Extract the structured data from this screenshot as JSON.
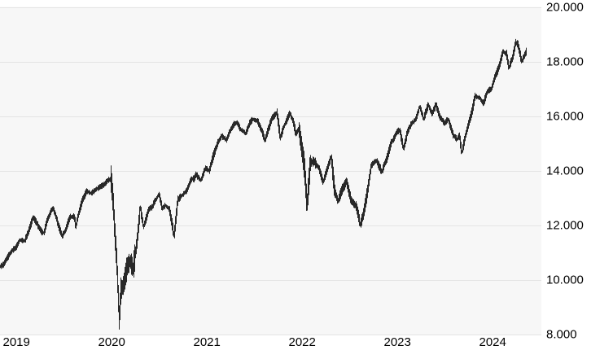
{
  "chart_data": {
    "type": "bar",
    "subtype": "daily-price-high-low-bars",
    "title": "",
    "legend": "none",
    "grid": true,
    "x_axis": {
      "labels": [
        "2019",
        "2020",
        "2021",
        "2022",
        "2023",
        "2024"
      ],
      "tick_years": [
        2019,
        2020,
        2021,
        2022,
        2023,
        2024
      ],
      "domain": [
        2018.96,
        2024.64
      ]
    },
    "y_axis": {
      "side": "right",
      "labels": [
        "20.000",
        "18.000",
        "16.000",
        "14.000",
        "12.000",
        "10.000",
        "8.000"
      ],
      "tick_values": [
        20000,
        18000,
        16000,
        14000,
        12000,
        10000,
        8000
      ],
      "range": [
        8000,
        20000
      ]
    },
    "series": [
      {
        "name": "index-price",
        "end_t": 2024.495,
        "points": [
          [
            2018.965,
            10480
          ],
          [
            2019.0,
            10580
          ],
          [
            2019.03,
            10820
          ],
          [
            2019.09,
            11130
          ],
          [
            2019.13,
            11250
          ],
          [
            2019.17,
            11500
          ],
          [
            2019.22,
            11400
          ],
          [
            2019.26,
            11690
          ],
          [
            2019.31,
            12280
          ],
          [
            2019.35,
            12070
          ],
          [
            2019.4,
            11750
          ],
          [
            2019.425,
            11680
          ],
          [
            2019.46,
            12150
          ],
          [
            2019.5,
            12480
          ],
          [
            2019.52,
            12560
          ],
          [
            2019.56,
            12190
          ],
          [
            2019.615,
            11640
          ],
          [
            2019.65,
            11880
          ],
          [
            2019.7,
            12380
          ],
          [
            2019.74,
            12400
          ],
          [
            2019.76,
            11990
          ],
          [
            2019.83,
            12890
          ],
          [
            2019.87,
            13230
          ],
          [
            2019.92,
            13180
          ],
          [
            2019.97,
            13270
          ],
          [
            2020.02,
            13320
          ],
          [
            2020.06,
            13520
          ],
          [
            2020.1,
            13680
          ],
          [
            2020.13,
            13740
          ],
          [
            2020.155,
            12650
          ],
          [
            2020.165,
            11900
          ],
          [
            2020.19,
            10580
          ],
          [
            2020.215,
            8500
          ],
          [
            2020.23,
            9550
          ],
          [
            2020.26,
            9850
          ],
          [
            2020.3,
            10500
          ],
          [
            2020.33,
            10750
          ],
          [
            2020.36,
            10480
          ],
          [
            2020.4,
            11450
          ],
          [
            2020.435,
            12750
          ],
          [
            2020.47,
            12070
          ],
          [
            2020.52,
            12600
          ],
          [
            2020.56,
            12750
          ],
          [
            2020.58,
            12920
          ],
          [
            2020.63,
            13120
          ],
          [
            2020.665,
            12630
          ],
          [
            2020.7,
            12750
          ],
          [
            2020.74,
            12620
          ],
          [
            2020.79,
            11590
          ],
          [
            2020.83,
            12950
          ],
          [
            2020.87,
            13150
          ],
          [
            2020.92,
            13230
          ],
          [
            2020.96,
            13600
          ],
          [
            2021.0,
            13720
          ],
          [
            2021.02,
            13920
          ],
          [
            2021.07,
            13660
          ],
          [
            2021.12,
            14010
          ],
          [
            2021.16,
            13900
          ],
          [
            2021.21,
            14580
          ],
          [
            2021.25,
            15010
          ],
          [
            2021.29,
            15270
          ],
          [
            2021.34,
            15120
          ],
          [
            2021.37,
            15380
          ],
          [
            2021.42,
            15670
          ],
          [
            2021.45,
            15710
          ],
          [
            2021.49,
            15480
          ],
          [
            2021.54,
            15350
          ],
          [
            2021.58,
            15750
          ],
          [
            2021.62,
            15940
          ],
          [
            2021.67,
            15780
          ],
          [
            2021.71,
            15480
          ],
          [
            2021.745,
            15090
          ],
          [
            2021.78,
            15480
          ],
          [
            2021.82,
            15950
          ],
          [
            2021.87,
            16190
          ],
          [
            2021.905,
            15210
          ],
          [
            2021.94,
            15600
          ],
          [
            2021.97,
            15750
          ],
          [
            2022.005,
            16080
          ],
          [
            2022.04,
            15880
          ],
          [
            2022.07,
            15380
          ],
          [
            2022.1,
            15550
          ],
          [
            2022.135,
            14750
          ],
          [
            2022.16,
            14100
          ],
          [
            2022.185,
            12750
          ],
          [
            2022.22,
            14350
          ],
          [
            2022.26,
            14420
          ],
          [
            2022.31,
            14150
          ],
          [
            2022.355,
            13620
          ],
          [
            2022.4,
            14050
          ],
          [
            2022.44,
            14480
          ],
          [
            2022.475,
            13250
          ],
          [
            2022.51,
            12850
          ],
          [
            2022.55,
            13300
          ],
          [
            2022.6,
            13730
          ],
          [
            2022.65,
            12980
          ],
          [
            2022.7,
            12750
          ],
          [
            2022.745,
            12020
          ],
          [
            2022.78,
            12450
          ],
          [
            2022.82,
            13250
          ],
          [
            2022.86,
            14200
          ],
          [
            2022.92,
            14450
          ],
          [
            2022.97,
            13940
          ],
          [
            2023.02,
            14450
          ],
          [
            2023.07,
            15090
          ],
          [
            2023.12,
            15380
          ],
          [
            2023.16,
            15550
          ],
          [
            2023.2,
            14870
          ],
          [
            2023.24,
            15480
          ],
          [
            2023.29,
            15800
          ],
          [
            2023.33,
            15890
          ],
          [
            2023.37,
            16230
          ],
          [
            2023.41,
            15780
          ],
          [
            2023.46,
            16310
          ],
          [
            2023.5,
            15980
          ],
          [
            2023.54,
            16400
          ],
          [
            2023.58,
            15950
          ],
          [
            2023.63,
            15680
          ],
          [
            2023.67,
            15880
          ],
          [
            2023.72,
            15290
          ],
          [
            2023.76,
            15120
          ],
          [
            2023.785,
            15250
          ],
          [
            2023.81,
            14680
          ],
          [
            2023.86,
            15380
          ],
          [
            2023.91,
            16120
          ],
          [
            2023.95,
            16770
          ],
          [
            2024.0,
            16730
          ],
          [
            2024.04,
            16510
          ],
          [
            2024.08,
            16920
          ],
          [
            2024.12,
            17060
          ],
          [
            2024.16,
            17470
          ],
          [
            2024.21,
            17960
          ],
          [
            2024.245,
            18440
          ],
          [
            2024.28,
            18320
          ],
          [
            2024.305,
            17790
          ],
          [
            2024.34,
            18120
          ],
          [
            2024.375,
            18770
          ],
          [
            2024.4,
            18680
          ],
          [
            2024.44,
            18060
          ],
          [
            2024.47,
            18280
          ],
          [
            2024.495,
            18480
          ]
        ]
      }
    ],
    "volatility_windows": [
      [
        2020.12,
        2020.38,
        2.4
      ],
      [
        2022.1,
        2022.28,
        1.7
      ],
      [
        2022.45,
        2022.82,
        1.25
      ]
    ],
    "style": {
      "bar_color": "#111111",
      "plot_bg": "#f7f7f7",
      "grid_color": "#e4e4e4",
      "label_color": "#000000",
      "page_bg": "#ffffff"
    },
    "seed": 13
  }
}
